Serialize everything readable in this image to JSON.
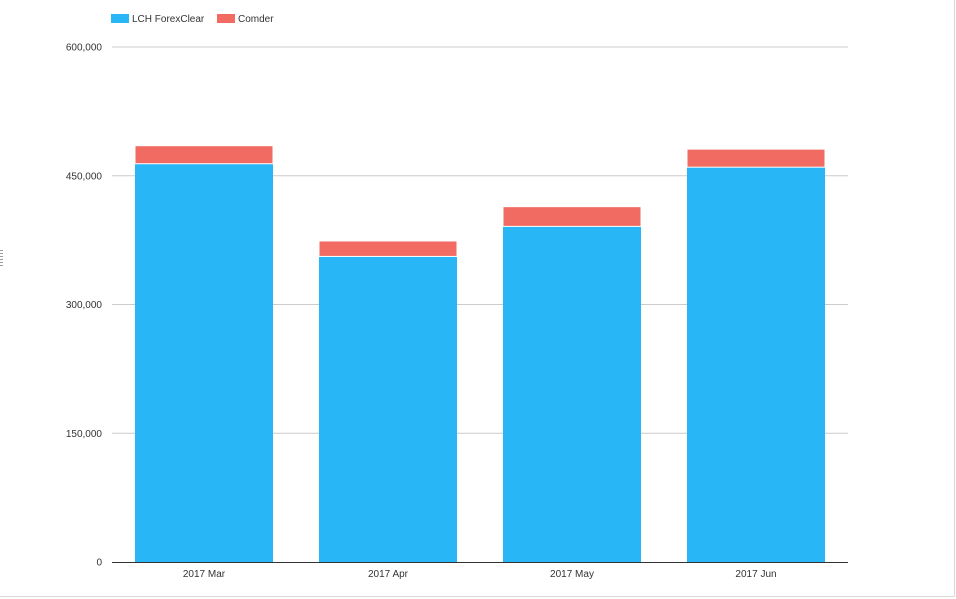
{
  "colors": {
    "lch_forexclear": "#29b6f6",
    "comder": "#f26b62",
    "grid": "#cccccc",
    "axis": "#333333"
  },
  "chart_data": {
    "type": "bar",
    "stacked": true,
    "categories": [
      "2017 Mar",
      "2017 Apr",
      "2017 May",
      "2017 Jun"
    ],
    "series": [
      {
        "name": "LCH ForexClear",
        "values": [
          464000,
          356000,
          391000,
          460000
        ]
      },
      {
        "name": "Comder",
        "values": [
          21000,
          18000,
          23000,
          21000
        ]
      }
    ],
    "yticks": [
      "0",
      "150,000",
      "300,000",
      "450,000",
      "600,000"
    ],
    "ylim": [
      0,
      600000
    ],
    "title": "",
    "xlabel": "",
    "ylabel": "",
    "grid": true,
    "legend_position": "top-left"
  }
}
